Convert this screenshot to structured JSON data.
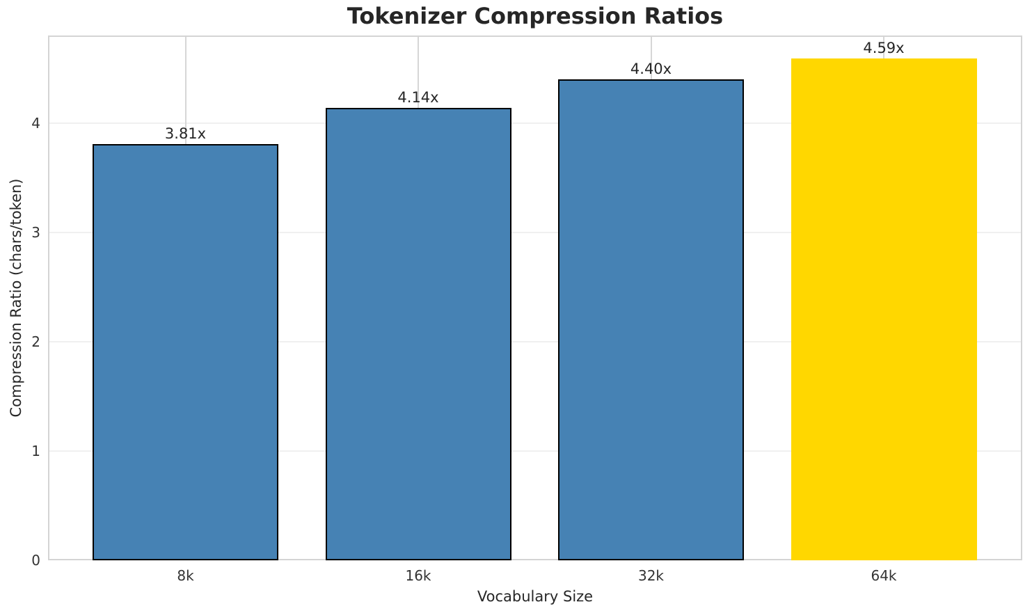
{
  "chart_data": {
    "type": "bar",
    "title": "Tokenizer Compression Ratios",
    "xlabel": "Vocabulary Size",
    "ylabel": "Compression Ratio (chars/token)",
    "categories": [
      "8k",
      "16k",
      "32k",
      "64k"
    ],
    "values": [
      3.81,
      4.14,
      4.4,
      4.59
    ],
    "bar_labels": [
      "3.81x",
      "4.14x",
      "4.40x",
      "4.59x"
    ],
    "bar_colors": [
      "#4682B4",
      "#4682B4",
      "#4682B4",
      "#FFD700"
    ],
    "bar_edge_colors": [
      "#000000",
      "#000000",
      "#000000",
      "#FFD700"
    ],
    "yticks": [
      0,
      1,
      2,
      3,
      4
    ],
    "ylim": [
      0,
      4.8
    ],
    "grid": true,
    "legend_position": "none",
    "highlight": {
      "category": "64k",
      "color": "#FFD700"
    },
    "colors": {
      "bar_default": "#4682B4",
      "bar_highlight": "#FFD700",
      "bar_edge": "#000000",
      "spine": "#d4d4d4",
      "grid_vertical": "#d6d6d6",
      "grid_horizontal": "#f0f0f0",
      "text": "#262626",
      "background": "#ffffff"
    }
  }
}
